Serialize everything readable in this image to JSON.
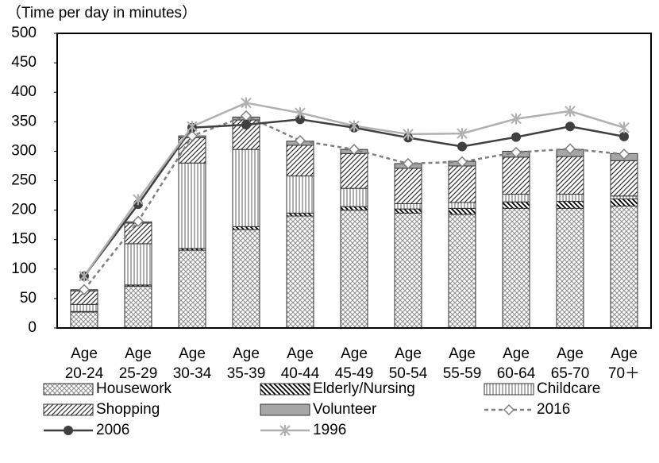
{
  "chart_data": {
    "type": "bar",
    "stacked": true,
    "y_label": "（Time per day in minutes）",
    "categories": [
      "Age 20-24",
      "Age 25-29",
      "Age 30-34",
      "Age 35-39",
      "Age 40-44",
      "Age 45-49",
      "Age 50-54",
      "Age 55-59",
      "Age 60-64",
      "Age 65-70",
      "Age 70＋"
    ],
    "ylim": [
      0,
      500
    ],
    "yticks": [
      0,
      50,
      100,
      150,
      200,
      250,
      300,
      350,
      400,
      450,
      500
    ],
    "grid": false,
    "series": [
      {
        "name": "Housework",
        "type": "bar",
        "pattern": "crosshatch",
        "color": "#8c8c8c",
        "values": [
          27,
          71,
          132,
          167,
          190,
          200,
          195,
          193,
          203,
          203,
          207
        ]
      },
      {
        "name": "Elderly/Nursing",
        "type": "bar",
        "pattern": "backslash",
        "color": "#000000",
        "values": [
          1,
          2,
          3,
          5,
          5,
          6,
          7,
          10,
          11,
          12,
          12
        ]
      },
      {
        "name": "Childcare",
        "type": "bar",
        "pattern": "vertical",
        "color": "#333333",
        "values": [
          12,
          70,
          145,
          131,
          63,
          31,
          9,
          10,
          13,
          12,
          5
        ]
      },
      {
        "name": "Shopping",
        "type": "bar",
        "pattern": "slash",
        "color": "#333333",
        "values": [
          23,
          35,
          43,
          50,
          52,
          59,
          60,
          62,
          63,
          64,
          60
        ]
      },
      {
        "name": "Volunteer",
        "type": "bar",
        "pattern": "solid",
        "color": "#a6a6a6",
        "values": [
          2,
          2,
          3,
          5,
          7,
          7,
          8,
          8,
          10,
          12,
          12
        ]
      },
      {
        "name": "2016",
        "type": "line",
        "marker": "diamond",
        "dashed": true,
        "color": "#7f7f7f",
        "values": [
          65,
          181,
          326,
          360,
          318,
          303,
          279,
          282,
          298,
          304,
          295
        ]
      },
      {
        "name": "2006",
        "type": "line",
        "marker": "circle",
        "dashed": false,
        "color": "#404040",
        "values": [
          88,
          210,
          340,
          345,
          354,
          340,
          323,
          308,
          324,
          342,
          325
        ]
      },
      {
        "name": "1996",
        "type": "line",
        "marker": "star",
        "dashed": false,
        "color": "#b0b0b0",
        "values": [
          88,
          218,
          342,
          382,
          365,
          343,
          329,
          330,
          355,
          368,
          340
        ]
      }
    ]
  }
}
